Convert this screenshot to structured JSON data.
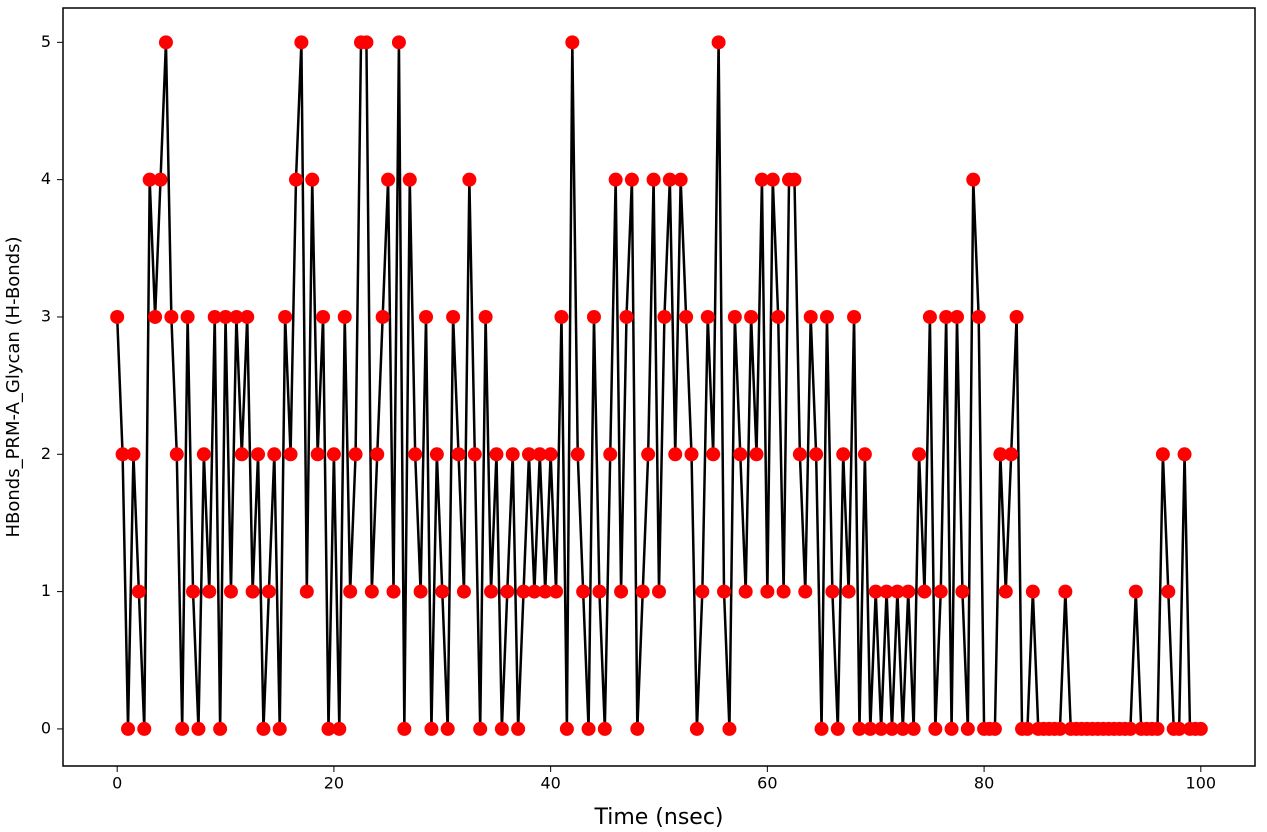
{
  "chart_data": {
    "type": "line",
    "xlabel": "Time (nsec)",
    "ylabel": "HBonds_PRM-A_Glycan (H-Bonds)",
    "line_color": "#000000",
    "marker_color": "#ff0000",
    "xlim": [
      -5,
      105
    ],
    "xticks": [
      0,
      20,
      40,
      60,
      80,
      100
    ],
    "ylim": [
      -0.27,
      5.25
    ],
    "yticks": [
      0,
      1,
      2,
      3,
      4,
      5
    ],
    "grid": false,
    "x": [
      0,
      0.5,
      1,
      1.5,
      2,
      2.5,
      3,
      3.5,
      4,
      4.5,
      5,
      5.5,
      6,
      6.5,
      7,
      7.5,
      8,
      8.5,
      9,
      9.5,
      10,
      10.5,
      11,
      11.5,
      12,
      12.5,
      13,
      13.5,
      14,
      14.5,
      15,
      15.5,
      16,
      16.5,
      17,
      17.5,
      18,
      18.5,
      19,
      19.5,
      20,
      20.5,
      21,
      21.5,
      22,
      22.5,
      23,
      23.5,
      24,
      24.5,
      25,
      25.5,
      26,
      26.5,
      27,
      27.5,
      28,
      28.5,
      29,
      29.5,
      30,
      30.5,
      31,
      31.5,
      32,
      32.5,
      33,
      33.5,
      34,
      34.5,
      35,
      35.5,
      36,
      36.5,
      37,
      37.5,
      38,
      38.5,
      39,
      39.5,
      40,
      40.5,
      41,
      41.5,
      42,
      42.5,
      43,
      43.5,
      44,
      44.5,
      45,
      45.5,
      46,
      46.5,
      47,
      47.5,
      48,
      48.5,
      49,
      49.5,
      50,
      50.5,
      51,
      51.5,
      52,
      52.5,
      53,
      53.5,
      54,
      54.5,
      55,
      55.5,
      56,
      56.5,
      57,
      57.5,
      58,
      58.5,
      59,
      59.5,
      60,
      60.5,
      61,
      61.5,
      62,
      62.5,
      63,
      63.5,
      64,
      64.5,
      65,
      65.5,
      66,
      66.5,
      67,
      67.5,
      68,
      68.5,
      69,
      69.5,
      70,
      70.5,
      71,
      71.5,
      72,
      72.5,
      73,
      73.5,
      74,
      74.5,
      75,
      75.5,
      76,
      76.5,
      77,
      77.5,
      78,
      78.5,
      79,
      79.5,
      80,
      80.5,
      81,
      81.5,
      82,
      82.5,
      83,
      83.5,
      84,
      84.5,
      85,
      85.5,
      86,
      86.5,
      87,
      87.5,
      88,
      88.5,
      89,
      89.5,
      90,
      90.5,
      91,
      91.5,
      92,
      92.5,
      93,
      93.5,
      94,
      94.5,
      95,
      95.5,
      96,
      96.5,
      97,
      97.5,
      98,
      98.5,
      99,
      99.5,
      100
    ],
    "values": [
      3,
      2,
      0,
      2,
      1,
      0,
      4,
      3,
      4,
      5,
      3,
      2,
      0,
      3,
      1,
      0,
      2,
      1,
      3,
      0,
      3,
      1,
      3,
      2,
      3,
      1,
      2,
      0,
      1,
      2,
      0,
      3,
      2,
      4,
      5,
      1,
      4,
      2,
      3,
      0,
      2,
      0,
      3,
      1,
      2,
      5,
      5,
      1,
      2,
      3,
      4,
      1,
      5,
      0,
      4,
      2,
      1,
      3,
      0,
      2,
      1,
      0,
      3,
      2,
      1,
      4,
      2,
      0,
      3,
      1,
      2,
      0,
      1,
      2,
      0,
      1,
      2,
      1,
      2,
      1,
      2,
      1,
      3,
      0,
      5,
      2,
      1,
      0,
      3,
      1,
      0,
      2,
      4,
      1,
      3,
      4,
      0,
      1,
      2,
      4,
      1,
      3,
      4,
      2,
      4,
      3,
      2,
      0,
      1,
      3,
      2,
      5,
      1,
      0,
      3,
      2,
      1,
      3,
      2,
      4,
      1,
      4,
      3,
      1,
      4,
      4,
      2,
      1,
      3,
      2,
      0,
      3,
      1,
      0,
      2,
      1,
      3,
      0,
      2,
      0,
      1,
      0,
      1,
      0,
      1,
      0,
      1,
      0,
      2,
      1,
      3,
      0,
      1,
      3,
      0,
      3,
      1,
      0,
      4,
      3,
      0,
      0,
      0,
      2,
      1,
      2,
      3,
      0,
      0,
      1,
      0,
      0,
      0,
      0,
      0,
      1,
      0,
      0,
      0,
      0,
      0,
      0,
      0,
      0,
      0,
      0,
      0,
      0,
      1,
      0,
      0,
      0,
      0,
      2,
      1,
      0,
      0,
      2,
      0,
      0,
      0
    ]
  }
}
